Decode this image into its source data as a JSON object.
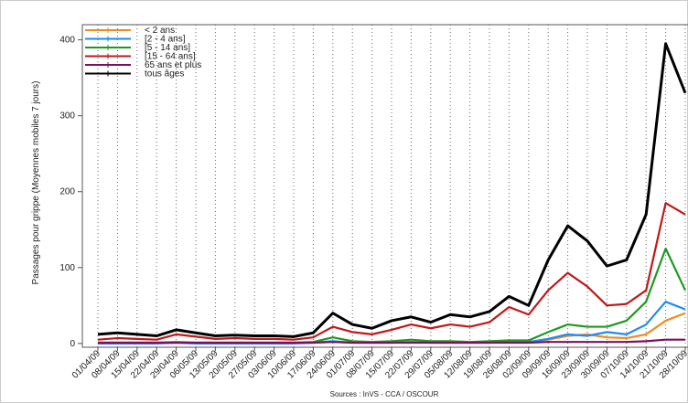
{
  "chart_data": {
    "type": "line",
    "y_label": "Passages pour grippe (Moyennes mobiles 7 jours)",
    "source": "Sources : InVS - CCA / OSCOUR",
    "categories": [
      "01/04/09",
      "08/04/09",
      "15/04/09",
      "22/04/09",
      "29/04/09",
      "06/05/09",
      "13/05/09",
      "20/05/09",
      "27/05/09",
      "03/06/09",
      "10/06/09",
      "17/06/09",
      "24/06/09",
      "01/07/09",
      "08/07/09",
      "15/07/09",
      "22/07/09",
      "29/07/09",
      "05/08/09",
      "12/08/09",
      "19/08/09",
      "26/08/09",
      "02/09/09",
      "09/09/09",
      "16/09/09",
      "23/09/09",
      "30/09/09",
      "07/10/09",
      "14/10/09",
      "21/10/09",
      "28/10/09"
    ],
    "series": [
      {
        "name": "< 2 ans",
        "color": "#f08c1e",
        "values": [
          1,
          1,
          1,
          1,
          1,
          1,
          1,
          1,
          1,
          1,
          1,
          1,
          2,
          1,
          1,
          1,
          2,
          1,
          1,
          1,
          1,
          2,
          2,
          5,
          10,
          12,
          8,
          7,
          12,
          30,
          40
        ]
      },
      {
        "name": "[2 - 4 ans]",
        "color": "#1e8cf0",
        "values": [
          0,
          0,
          0,
          0,
          1,
          0,
          0,
          0,
          0,
          0,
          0,
          1,
          3,
          1,
          1,
          1,
          2,
          1,
          1,
          1,
          1,
          2,
          2,
          6,
          12,
          10,
          15,
          12,
          25,
          55,
          45
        ]
      },
      {
        "name": "[5 - 14 ans]",
        "color": "#1e9a1e",
        "values": [
          1,
          1,
          1,
          1,
          2,
          1,
          1,
          1,
          1,
          1,
          1,
          2,
          8,
          3,
          2,
          3,
          5,
          3,
          3,
          2,
          3,
          4,
          4,
          15,
          25,
          22,
          22,
          30,
          55,
          125,
          70
        ]
      },
      {
        "name": "[15 - 64 ans]",
        "color": "#c01818",
        "values": [
          5,
          7,
          6,
          5,
          12,
          9,
          6,
          7,
          6,
          6,
          5,
          8,
          22,
          15,
          12,
          18,
          25,
          20,
          25,
          22,
          28,
          48,
          38,
          70,
          93,
          75,
          50,
          52,
          70,
          185,
          170
        ]
      },
      {
        "name": "65 ans et plus",
        "color": "#7a1060",
        "values": [
          1,
          1,
          1,
          1,
          1,
          1,
          1,
          1,
          1,
          1,
          1,
          1,
          2,
          1,
          1,
          1,
          1,
          1,
          1,
          1,
          1,
          1,
          1,
          2,
          2,
          2,
          2,
          2,
          3,
          5,
          5
        ]
      },
      {
        "name": "tous âges",
        "color": "#000000",
        "values": [
          12,
          14,
          12,
          10,
          18,
          14,
          10,
          11,
          10,
          10,
          9,
          14,
          40,
          25,
          20,
          30,
          35,
          28,
          38,
          35,
          42,
          62,
          50,
          110,
          155,
          135,
          102,
          110,
          170,
          395,
          330
        ]
      }
    ],
    "ylim": [
      -5,
      420
    ],
    "yticks": [
      0,
      100,
      200,
      300,
      400
    ],
    "grid": true
  }
}
